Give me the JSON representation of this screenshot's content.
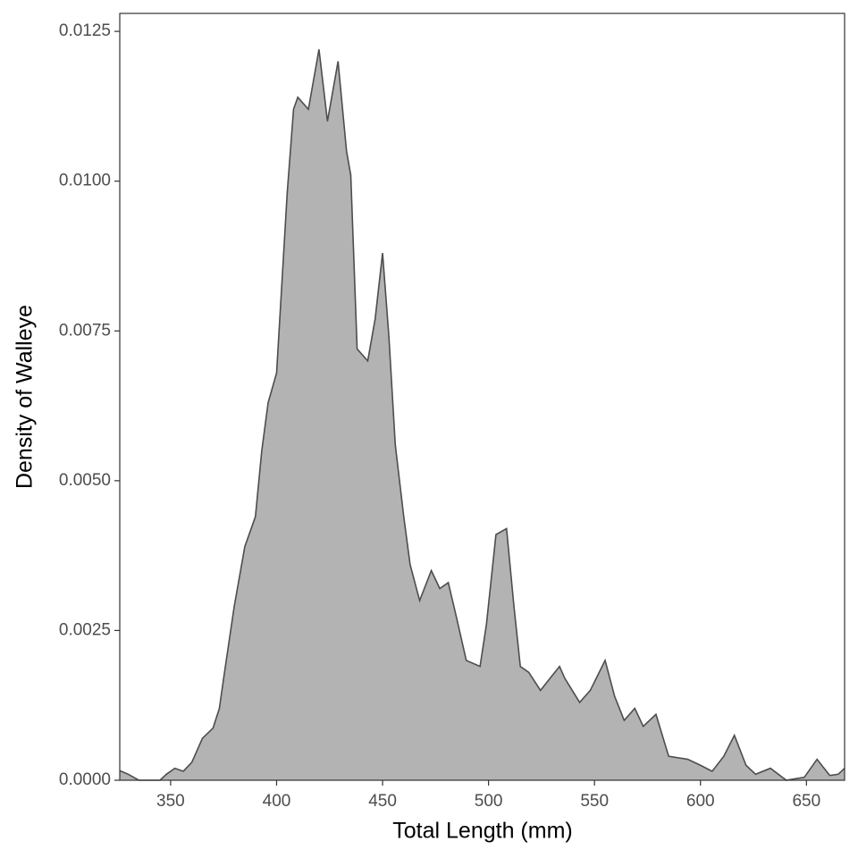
{
  "chart_data": {
    "type": "area",
    "xlabel": "Total Length (mm)",
    "ylabel": "Density of Walleye",
    "fill": "#b3b3b3",
    "color": "#4d4d4d",
    "x": [
      326,
      330,
      335,
      340,
      345,
      348,
      352,
      356,
      360,
      365,
      370,
      373,
      375,
      380,
      385,
      390,
      393,
      396,
      400,
      405,
      408,
      410,
      415,
      420,
      424,
      429,
      433,
      435,
      438,
      443,
      446.5,
      450,
      453,
      456,
      460,
      463,
      467.5,
      473,
      477,
      481,
      485,
      489.5,
      496,
      499,
      503.5,
      508.5,
      512,
      515,
      519,
      524.5,
      529,
      533.5,
      536,
      543,
      548,
      555,
      559.5,
      564,
      569,
      573,
      579,
      585,
      594,
      600,
      605.5,
      611,
      616,
      621.5,
      626,
      633,
      640.5,
      649,
      655,
      661,
      665,
      668
    ],
    "values": [
      0.00016,
      0.0001,
      0,
      0,
      0,
      0.0001,
      0.0002,
      0.00015,
      0.0003,
      0.0007,
      0.00087,
      0.0012,
      0.0017,
      0.0029,
      0.0039,
      0.0044,
      0.0055,
      0.0063,
      0.0068,
      0.0098,
      0.0112,
      0.0114,
      0.0112,
      0.0122,
      0.011,
      0.012,
      0.0105,
      0.0101,
      0.0072,
      0.007,
      0.0077,
      0.0088,
      0.0074,
      0.0056,
      0.0044,
      0.0036,
      0.003,
      0.0035,
      0.0032,
      0.0033,
      0.0027,
      0.002,
      0.0019,
      0.0026,
      0.0041,
      0.0042,
      0.0029,
      0.0019,
      0.0018,
      0.0015,
      0.0017,
      0.0019,
      0.0017,
      0.0013,
      0.0015,
      0.002,
      0.0014,
      0.001,
      0.0012,
      0.0009,
      0.0011,
      0.0004,
      0.00035,
      0.00025,
      0.00015,
      0.0004,
      0.00075,
      0.00025,
      0.0001,
      0.0002,
      0,
      5e-05,
      0.00035,
      8e-05,
      0.0001,
      0.0002
    ],
    "xlim": [
      326,
      668
    ],
    "ylim": [
      0,
      0.0128
    ],
    "xticks": [
      350,
      400,
      450,
      500,
      550,
      600,
      650
    ],
    "yticks": [
      {
        "value": 0,
        "label": "0.0000"
      },
      {
        "value": 0.0025,
        "label": "0.0025"
      },
      {
        "value": 0.005,
        "label": "0.0050"
      },
      {
        "value": 0.0075,
        "label": "0.0075"
      },
      {
        "value": 0.01,
        "label": "0.0100"
      },
      {
        "value": 0.0125,
        "label": "0.0125"
      }
    ]
  }
}
